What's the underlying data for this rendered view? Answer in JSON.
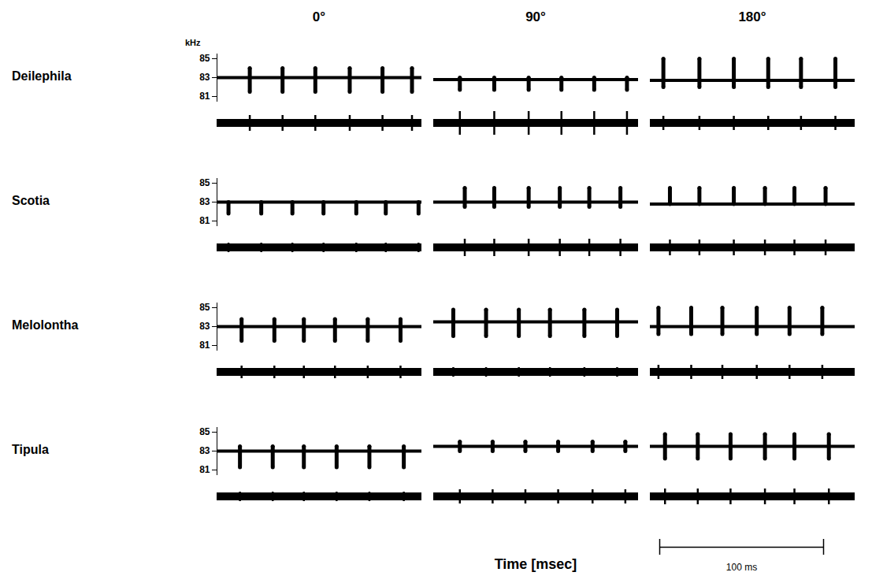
{
  "chart_data": {
    "type": "sonogram_grid",
    "x_label": "Time [msec]",
    "y_unit": "kHz",
    "xlim": [
      0,
      125
    ],
    "ylim": [
      80.5,
      85.5
    ],
    "yticks": [
      81,
      83,
      85
    ],
    "amplitude_range": [
      -3.2,
      3.2
    ],
    "osc_carrier": 1,
    "tick_labels": "y",
    "columns": [
      "0°",
      "90°",
      "180°"
    ],
    "scale_bar": {
      "value": 100,
      "label": "100 ms"
    },
    "rows": [
      {
        "name": "Deilephila",
        "panels": [
          {
            "carrier": 83,
            "glint_peak": 84,
            "glint_trough": 81.5,
            "amplitude": 2,
            "times": [
              20,
              40,
              60,
              81,
              101,
              119
            ]
          },
          {
            "carrier": 82.8,
            "glint_peak": 83,
            "glint_trough": 81.7,
            "amplitude": 3,
            "times": [
              16,
              37,
              58,
              78,
              98,
              118
            ]
          },
          {
            "carrier": 82.7,
            "glint_peak": 85,
            "glint_trough": 82,
            "amplitude": 1.8,
            "times": [
              8,
              30,
              51,
              72,
              92,
              113
            ]
          }
        ]
      },
      {
        "name": "Scotia",
        "panels": [
          {
            "carrier": 83,
            "glint_peak": 83,
            "glint_trough": 81.8,
            "amplitude": 1.2,
            "times": [
              7,
              27,
              46,
              65,
              85,
              103,
              123
            ]
          },
          {
            "carrier": 83,
            "glint_peak": 84.5,
            "glint_trough": 82.5,
            "amplitude": 2.2,
            "times": [
              19,
              37,
              58,
              77,
              95,
              114
            ]
          },
          {
            "carrier": 82.8,
            "glint_peak": 84.5,
            "glint_trough": 82.8,
            "amplitude": 2,
            "times": [
              12,
              30,
              51,
              70,
              88,
              107
            ]
          }
        ]
      },
      {
        "name": "Melolontha",
        "panels": [
          {
            "carrier": 83,
            "glint_peak": 83.8,
            "glint_trough": 81.5,
            "amplitude": 1.6,
            "times": [
              15,
              35,
              53,
              72,
              92,
              112
            ]
          },
          {
            "carrier": 83.5,
            "glint_peak": 84.8,
            "glint_trough": 82,
            "amplitude": 1.2,
            "times": [
              12,
              32,
              52,
              71,
              92,
              112
            ]
          },
          {
            "carrier": 83,
            "glint_peak": 85,
            "glint_trough": 82.2,
            "amplitude": 1.8,
            "times": [
              5,
              25,
              44,
              65,
              85,
              105
            ]
          }
        ]
      },
      {
        "name": "Tipula",
        "panels": [
          {
            "carrier": 83,
            "glint_peak": 83.5,
            "glint_trough": 81.3,
            "amplitude": 1.2,
            "times": [
              14,
              34,
              53,
              73,
              93,
              114
            ]
          },
          {
            "carrier": 83.5,
            "glint_peak": 84,
            "glint_trough": 83,
            "amplitude": 1.8,
            "times": [
              16,
              36,
              56,
              76,
              97,
              117
            ]
          },
          {
            "carrier": 83.5,
            "glint_peak": 84.8,
            "glint_trough": 82.2,
            "amplitude": 2,
            "times": [
              9,
              29,
              49,
              70,
              88,
              109
            ]
          }
        ]
      }
    ]
  }
}
